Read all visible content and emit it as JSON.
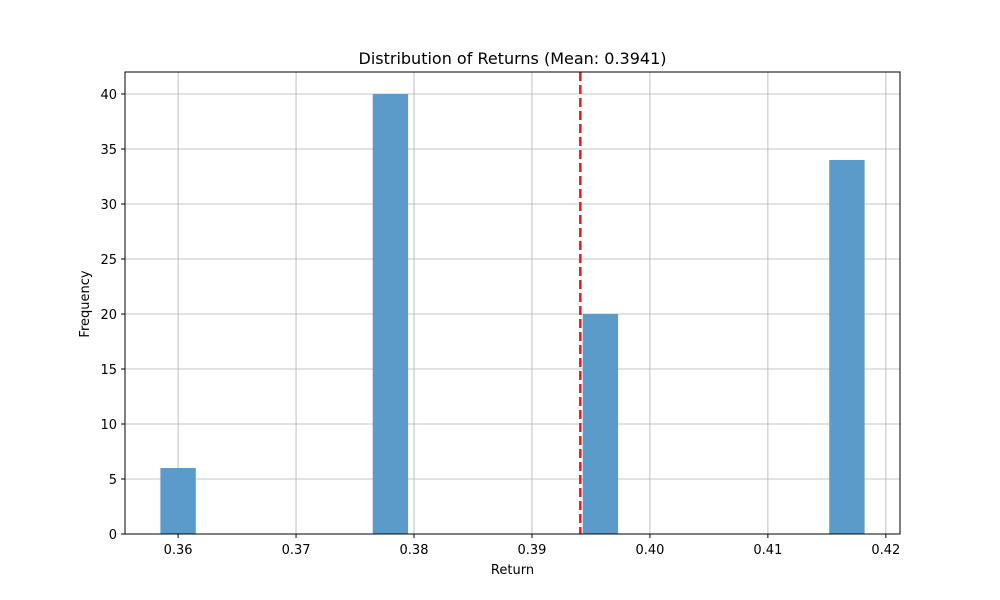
{
  "chart_data": {
    "type": "bar",
    "title": "Distribution of Returns (Mean: 0.3941)",
    "xlabel": "Return",
    "ylabel": "Frequency",
    "xlim": [
      0.3555,
      0.4212
    ],
    "ylim": [
      0,
      42
    ],
    "grid": true,
    "bar_width": 0.003,
    "bar_color": "#5b9bc9",
    "bars": [
      {
        "x_start": 0.3585,
        "value": 6
      },
      {
        "x_start": 0.3765,
        "value": 40
      },
      {
        "x_start": 0.3943,
        "value": 20
      },
      {
        "x_start": 0.4152,
        "value": 34
      }
    ],
    "mean_line": {
      "x": 0.3941,
      "color": "#e41a1c",
      "style": "dashed"
    },
    "xticks": [
      {
        "value": 0.36,
        "label": "0.36"
      },
      {
        "value": 0.37,
        "label": "0.37"
      },
      {
        "value": 0.38,
        "label": "0.38"
      },
      {
        "value": 0.39,
        "label": "0.39"
      },
      {
        "value": 0.4,
        "label": "0.40"
      },
      {
        "value": 0.41,
        "label": "0.41"
      },
      {
        "value": 0.42,
        "label": "0.42"
      }
    ],
    "yticks": [
      {
        "value": 0,
        "label": "0"
      },
      {
        "value": 5,
        "label": "5"
      },
      {
        "value": 10,
        "label": "10"
      },
      {
        "value": 15,
        "label": "15"
      },
      {
        "value": 20,
        "label": "20"
      },
      {
        "value": 25,
        "label": "25"
      },
      {
        "value": 30,
        "label": "30"
      },
      {
        "value": 35,
        "label": "35"
      },
      {
        "value": 40,
        "label": "40"
      }
    ]
  }
}
